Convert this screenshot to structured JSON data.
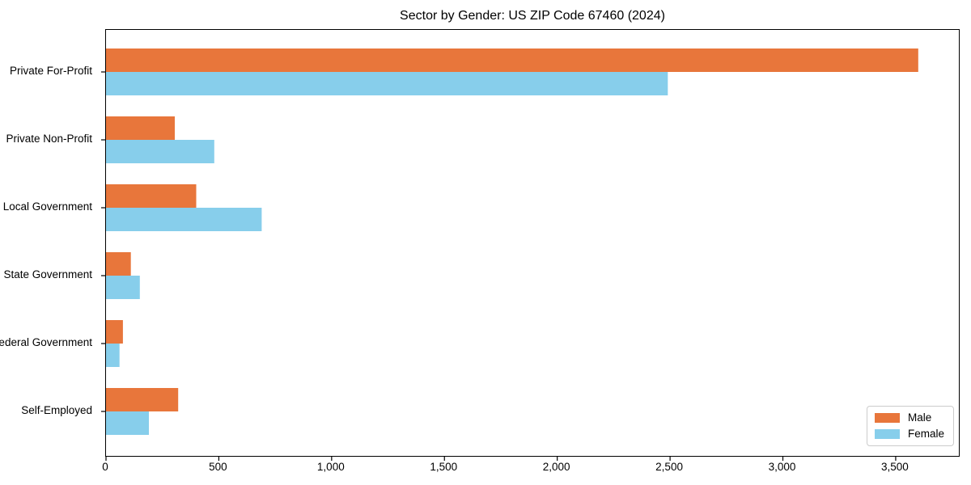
{
  "chart_data": {
    "type": "bar",
    "orientation": "horizontal",
    "title": "Sector by Gender: US ZIP Code 67460 (2024)",
    "categories": [
      "Private For-Profit",
      "Private Non-Profit",
      "Local Government",
      "State Government",
      "Federal Government",
      "Self-Employed"
    ],
    "series": [
      {
        "name": "Male",
        "color": "#E8763B",
        "values": [
          3600,
          305,
          400,
          110,
          75,
          320
        ]
      },
      {
        "name": "Female",
        "color": "#87CEEB",
        "values": [
          2490,
          480,
          690,
          150,
          60,
          190
        ]
      }
    ],
    "xlim": [
      0,
      3780
    ],
    "xticks": [
      0,
      500,
      1000,
      1500,
      2000,
      2500,
      3000,
      3500
    ],
    "xtick_labels": [
      "0",
      "500",
      "1,000",
      "1,500",
      "2,000",
      "2,500",
      "3,000",
      "3,500"
    ],
    "grid": false,
    "legend": {
      "position": "lower right"
    }
  }
}
